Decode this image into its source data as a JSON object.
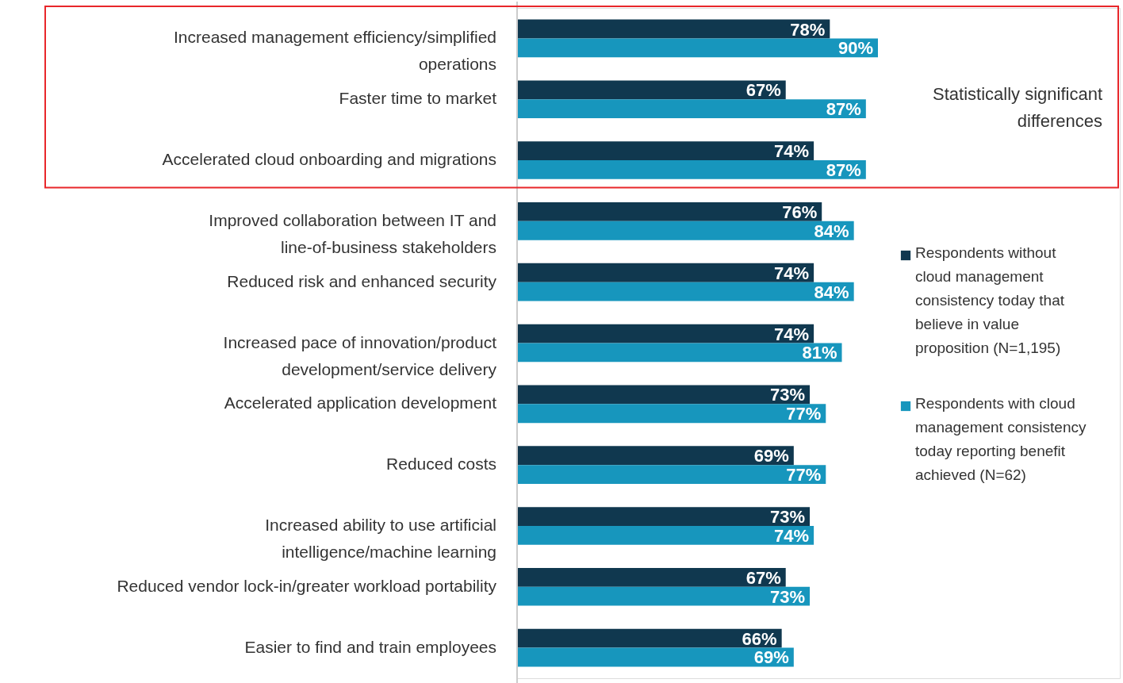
{
  "chart_data": {
    "type": "bar",
    "orientation": "horizontal",
    "legend": "right",
    "categories": [
      "Increased management efficiency/simplified operations",
      "Faster time to market",
      "Accelerated cloud onboarding and migrations",
      "Improved collaboration between IT and line-of-business stakeholders",
      "Reduced risk and enhanced security",
      "Increased pace of innovation/product development/service delivery",
      "Accelerated application development",
      "Reduced costs",
      "Increased ability to use artificial intelligence/machine learning",
      "Reduced vendor lock-in/greater workload portability",
      "Easier to find and train employees"
    ],
    "series": [
      {
        "name": "Respondents without cloud management consistency today that believe in value proposition (N=1,195)",
        "color": "#10384f",
        "values": [
          78,
          67,
          74,
          76,
          74,
          74,
          73,
          69,
          73,
          67,
          66
        ],
        "value_labels": [
          "78%",
          "67%",
          "74%",
          "76%",
          "74%",
          "74%",
          "73%",
          "69%",
          "73%",
          "67%",
          "66%"
        ]
      },
      {
        "name": "Respondents with cloud management consistency today reporting benefit achieved (N=62)",
        "color": "#1796bd",
        "values": [
          90,
          87,
          87,
          84,
          84,
          81,
          77,
          77,
          74,
          73,
          69
        ],
        "value_labels": [
          "90%",
          "87%",
          "87%",
          "84%",
          "84%",
          "81%",
          "77%",
          "77%",
          "74%",
          "73%",
          "69%"
        ]
      }
    ],
    "annotations": [
      "Statistically significant differences"
    ]
  }
}
